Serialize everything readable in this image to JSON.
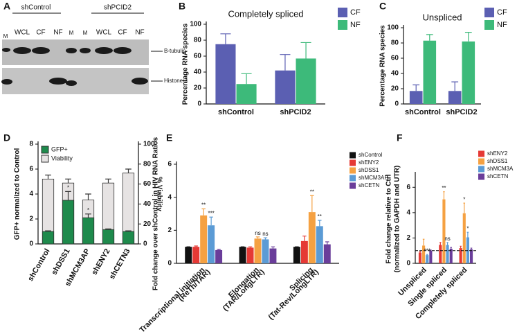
{
  "blot": {
    "letter": "A",
    "groups": [
      "shControl",
      "shPCID2"
    ],
    "markers": [
      "M",
      "M",
      "M"
    ],
    "lanes": [
      "WCL",
      "CF",
      "NF",
      "WCL",
      "CF",
      "NF"
    ],
    "bands": [
      "B-tubulin",
      "Histone 3"
    ]
  },
  "chart_data": [
    {
      "type": "bar",
      "letter": "B",
      "title": "Completely spliced",
      "ylabel": "Percentage RNA species",
      "categories": [
        "shControl",
        "shPCID2"
      ],
      "series": [
        {
          "name": "CF",
          "color": "#5b5fb2",
          "values": [
            75,
            42
          ],
          "errors": [
            13,
            20
          ]
        },
        {
          "name": "NF",
          "color": "#3dba7a",
          "values": [
            25,
            57
          ],
          "errors": [
            13,
            20
          ]
        }
      ],
      "ylim": [
        0,
        100
      ],
      "yticks": [
        0,
        20,
        40,
        60,
        80,
        100
      ]
    },
    {
      "type": "bar",
      "letter": "C",
      "title": "Unspliced",
      "ylabel": "Percentage RNA species",
      "categories": [
        "shControl",
        "shPCID2"
      ],
      "series": [
        {
          "name": "CF",
          "color": "#5b5fb2",
          "values": [
            17,
            17
          ],
          "errors": [
            8,
            12
          ]
        },
        {
          "name": "NF",
          "color": "#3dba7a",
          "values": [
            83,
            82
          ],
          "errors": [
            8,
            12
          ]
        }
      ],
      "ylim": [
        0,
        100
      ],
      "yticks": [
        0,
        20,
        40,
        60,
        80,
        100
      ]
    },
    {
      "type": "bar",
      "letter": "D",
      "barmode": "overlay",
      "ylabel": "GFP+ normalized to Control",
      "y2label": "% Viability",
      "categories": [
        "shControl",
        "shDSS1",
        "shMCM3AP",
        "shENY2",
        "shCETN3"
      ],
      "series": [
        {
          "name": "GFP+",
          "color": "#1e8a4c",
          "values": [
            1,
            3.5,
            2.1,
            1.15,
            1.0
          ],
          "errors": [
            0.05,
            0.7,
            0.3,
            0.05,
            0.05
          ],
          "annotations": [
            null,
            "*",
            "*",
            null,
            null
          ]
        },
        {
          "name": "Viability",
          "color": "#e6e3e3",
          "axis": "y2",
          "values": [
            65,
            61,
            44,
            61,
            71
          ],
          "errors": [
            4,
            4,
            6,
            4,
            4
          ]
        }
      ],
      "ylim": [
        0,
        8
      ],
      "yticks": [
        0,
        2,
        4,
        6,
        8
      ],
      "y2lim": [
        0,
        100
      ],
      "y2ticks": [
        0,
        20,
        40,
        60,
        80,
        100
      ]
    },
    {
      "type": "bar",
      "letter": "E",
      "ylabel": "Fold change over shControl in HIV RNA Ratios",
      "categories": [
        [
          "Transcriptional initiation",
          "(ReTh/TAR)"
        ],
        [
          "Elongation",
          "(TAR/LongLTR)"
        ],
        [
          "Splicing",
          "(Tat-Rev/LongLTR)"
        ]
      ],
      "series": [
        {
          "name": "shControl",
          "color": "#111111",
          "values": [
            1,
            1,
            1
          ],
          "errors": [
            0,
            0,
            0
          ],
          "annotations": [
            null,
            null,
            null
          ]
        },
        {
          "name": "shENY2",
          "color": "#e53935",
          "values": [
            1.0,
            0.95,
            1.35
          ],
          "errors": [
            0.05,
            0.05,
            0.3
          ],
          "annotations": [
            null,
            null,
            null
          ]
        },
        {
          "name": "shDSS1",
          "color": "#f5a142",
          "values": [
            2.9,
            1.5,
            3.1
          ],
          "errors": [
            0.4,
            0.1,
            1.0
          ],
          "annotations": [
            "**",
            "ns",
            "**"
          ]
        },
        {
          "name": "shMCM3AP",
          "color": "#5b9bd5",
          "values": [
            2.3,
            1.45,
            2.25
          ],
          "errors": [
            0.5,
            0.1,
            0.35
          ],
          "annotations": [
            "***",
            "ns",
            "**"
          ]
        },
        {
          "name": "shCETN",
          "color": "#6a3d9a",
          "values": [
            0.8,
            0.9,
            1.15
          ],
          "errors": [
            0.05,
            0.1,
            0.15
          ],
          "annotations": [
            null,
            null,
            null
          ]
        }
      ],
      "ylim": [
        0,
        6
      ],
      "yticks": [
        0,
        2,
        4,
        6
      ]
    },
    {
      "type": "bar",
      "letter": "F",
      "ylabel": [
        "Fold change relative to Ctrl",
        "(normalized to GAPDH and UTR)"
      ],
      "hline": 1,
      "categories": [
        "Unspliced",
        "Single spliced",
        "Completely spliced"
      ],
      "series": [
        {
          "name": "shENY2",
          "color": "#e53935",
          "values": [
            0.85,
            1.45,
            1.2
          ],
          "errors": [
            0.1,
            0.2,
            0.15
          ],
          "annotations": [
            null,
            null,
            null
          ]
        },
        {
          "name": "shDSS1",
          "color": "#f5a142",
          "values": [
            1.4,
            5.05,
            3.95
          ],
          "errors": [
            0.5,
            0.6,
            0.8
          ],
          "annotations": [
            null,
            "**",
            "*"
          ]
        },
        {
          "name": "shMCM3A",
          "color": "#5b9bd5",
          "values": [
            0.65,
            1.45,
            2.05
          ],
          "errors": [
            0.05,
            0.2,
            0.4
          ],
          "annotations": [
            "***",
            "ns",
            "*"
          ]
        },
        {
          "name": "shCETN",
          "color": "#6a3d9a",
          "values": [
            1.0,
            1.15,
            1.1
          ],
          "errors": [
            0.05,
            0.1,
            0.1
          ],
          "annotations": [
            null,
            null,
            null
          ]
        }
      ],
      "ylim": [
        0,
        7
      ],
      "yticks": [
        0,
        2,
        4,
        6
      ]
    }
  ]
}
